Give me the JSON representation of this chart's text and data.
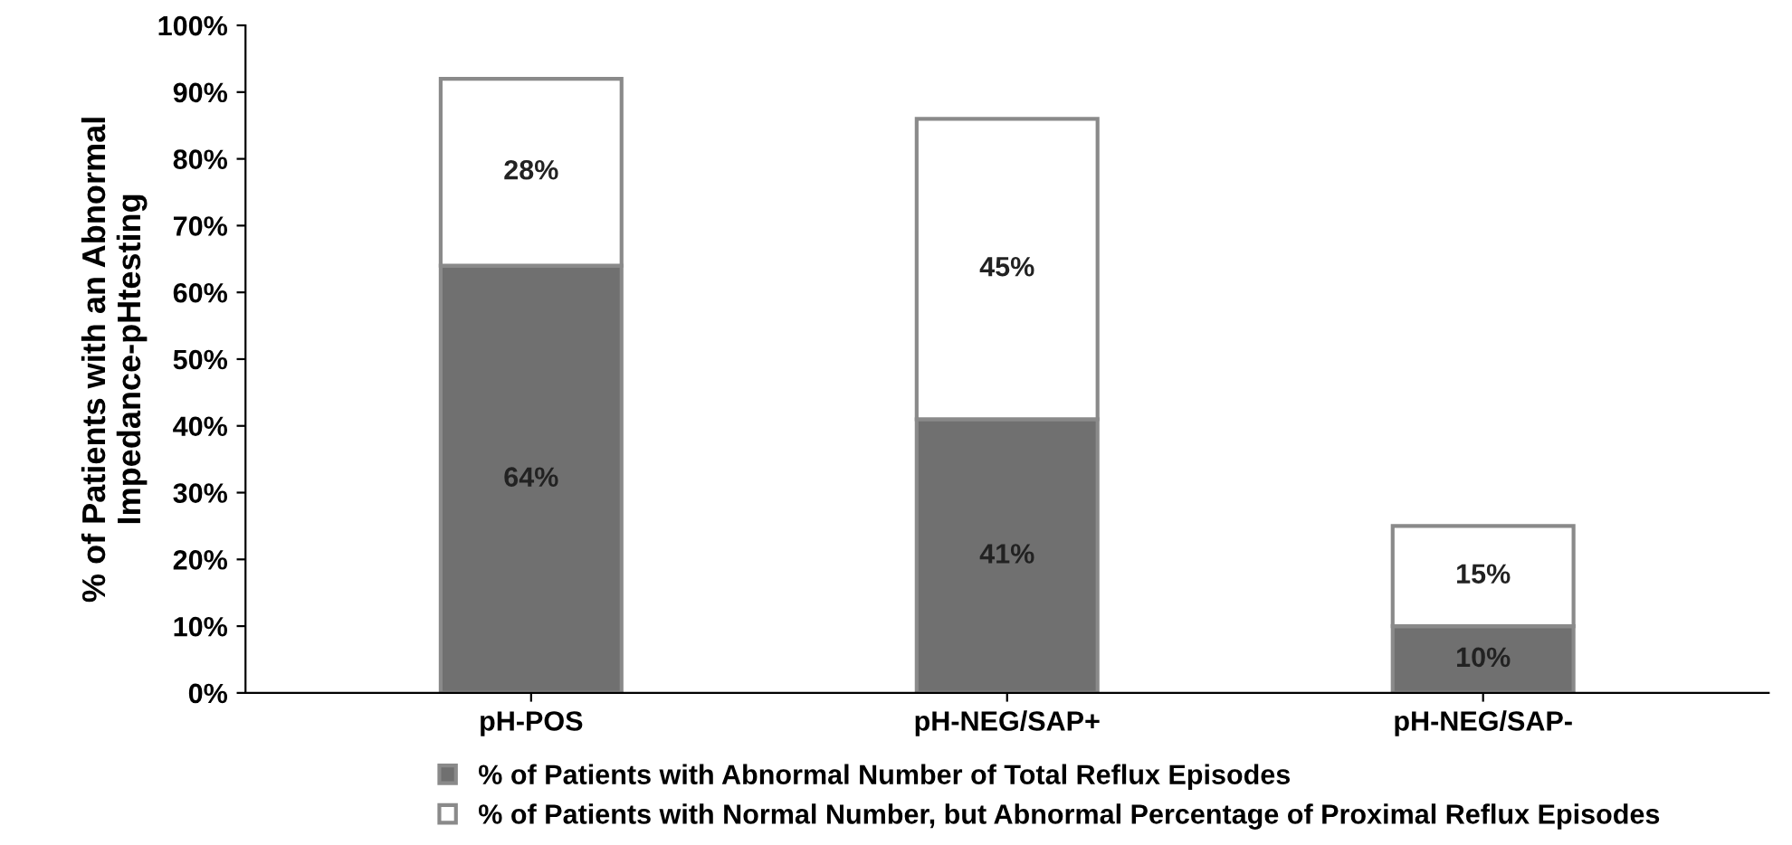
{
  "chart_data": {
    "type": "bar",
    "stacked": true,
    "ylabel": "% of Patients with an Abnormal\nImpedance-pHtesting",
    "categories": [
      "pH-POS",
      "pH-NEG/SAP+",
      "pH-NEG/SAP-"
    ],
    "series": [
      {
        "name": "% of Patients with Abnormal Number of Total Reflux Episodes",
        "color": "#707070",
        "values": [
          64,
          41,
          10
        ],
        "value_labels": [
          "64%",
          "41%",
          "10%"
        ]
      },
      {
        "name": "% of Patients with Normal Number, but Abnormal Percentage of Proximal Reflux Episodes",
        "color": "#ffffff",
        "values": [
          28,
          45,
          15
        ],
        "value_labels": [
          "28%",
          "45%",
          "15%"
        ]
      }
    ],
    "ylim": [
      0,
      100
    ],
    "yticks": [
      {
        "value": 0,
        "label": "0%"
      },
      {
        "value": 10,
        "label": "10%"
      },
      {
        "value": 20,
        "label": "20%"
      },
      {
        "value": 30,
        "label": "30%"
      },
      {
        "value": 40,
        "label": "40%"
      },
      {
        "value": 50,
        "label": "50%"
      },
      {
        "value": 60,
        "label": "60%"
      },
      {
        "value": 70,
        "label": "70%"
      },
      {
        "value": 80,
        "label": "80%"
      },
      {
        "value": 90,
        "label": "90%"
      },
      {
        "value": 100,
        "label": "100%"
      }
    ],
    "grid": false,
    "legend": "bottom"
  }
}
